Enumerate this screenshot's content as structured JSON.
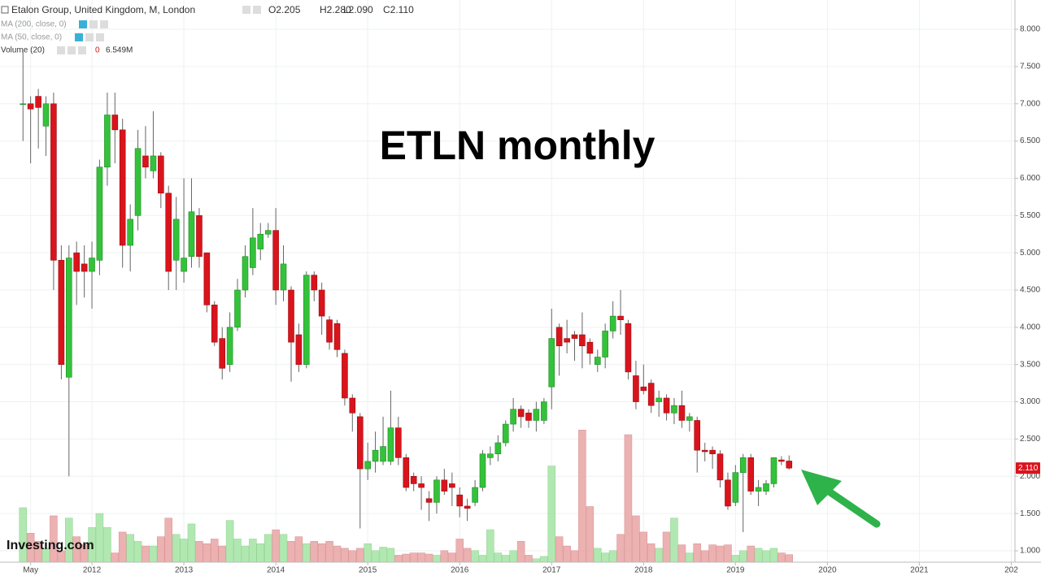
{
  "chart_data": {
    "type": "candlestick",
    "title": "ETLN monthly",
    "header": {
      "name": "Etalon Group, United Kingdom, M, London",
      "open": "O2.205",
      "high": "H2.280",
      "low": "L2.090",
      "close": "C2.110"
    },
    "indicators": [
      "MA (200, close, 0)",
      "MA (50, close, 0)"
    ],
    "volume_header": {
      "name": "Volume (20)",
      "zero": "0",
      "last": "6.549M"
    },
    "watermark": "Investing.com",
    "last_price_label": "2.110",
    "colors": {
      "up": "#34c23a",
      "down": "#d9141c",
      "up_volume": "#a9e6a9",
      "down_volume": "#eaa8a8"
    },
    "x": [
      2011.25,
      2011.333,
      2011.417,
      2011.5,
      2011.583,
      2011.667,
      2011.75,
      2011.833,
      2011.917,
      2012.0,
      2012.083,
      2012.167,
      2012.25,
      2012.333,
      2012.417,
      2012.5,
      2012.583,
      2012.667,
      2012.75,
      2012.833,
      2012.917,
      2013.0,
      2013.083,
      2013.167,
      2013.25,
      2013.333,
      2013.417,
      2013.5,
      2013.583,
      2013.667,
      2013.75,
      2013.833,
      2013.917,
      2014.0,
      2014.083,
      2014.167,
      2014.25,
      2014.333,
      2014.417,
      2014.5,
      2014.583,
      2014.667,
      2014.75,
      2014.833,
      2014.917,
      2015.0,
      2015.083,
      2015.167,
      2015.25,
      2015.333,
      2015.417,
      2015.5,
      2015.583,
      2015.667,
      2015.75,
      2015.833,
      2015.917,
      2016.0,
      2016.083,
      2016.167,
      2016.25,
      2016.333,
      2016.417,
      2016.5,
      2016.583,
      2016.667,
      2016.75,
      2016.833,
      2016.917,
      2017.0,
      2017.083,
      2017.167,
      2017.25,
      2017.333,
      2017.417,
      2017.5,
      2017.583,
      2017.667,
      2017.75,
      2017.833,
      2017.917,
      2018.0,
      2018.083,
      2018.167,
      2018.25,
      2018.333,
      2018.417,
      2018.5,
      2018.583,
      2018.667,
      2018.75,
      2018.833,
      2018.917,
      2019.0,
      2019.083,
      2019.167,
      2019.25,
      2019.333,
      2019.417,
      2019.5,
      2019.583
    ],
    "open": [
      7.0,
      7.0,
      7.1,
      6.7,
      7.0,
      4.9,
      3.33,
      5.0,
      4.85,
      4.75,
      4.9,
      6.15,
      6.85,
      6.65,
      5.1,
      5.5,
      6.3,
      6.1,
      6.3,
      5.8,
      4.9,
      4.75,
      4.95,
      5.5,
      5.0,
      4.3,
      3.85,
      3.5,
      4.0,
      4.5,
      4.8,
      5.05,
      5.25,
      5.3,
      4.5,
      4.5,
      3.9,
      3.5,
      4.7,
      4.5,
      4.1,
      4.05,
      3.65,
      3.05,
      2.8,
      2.1,
      2.2,
      2.2,
      2.2,
      2.65,
      2.25,
      2.0,
      1.9,
      1.7,
      1.65,
      1.95,
      1.9,
      1.75,
      1.6,
      1.65,
      1.85,
      2.25,
      2.3,
      2.45,
      2.7,
      2.9,
      2.85,
      2.75,
      2.75,
      3.2,
      4.0,
      3.85,
      3.9,
      3.9,
      3.8,
      3.5,
      3.6,
      3.95,
      4.15,
      4.05,
      3.35,
      3.2,
      3.25,
      3.0,
      3.05,
      2.85,
      2.95,
      2.75,
      2.75,
      2.35,
      2.35,
      2.3,
      1.95,
      1.65,
      2.05,
      2.25,
      1.8,
      1.8,
      1.9,
      2.22,
      2.205
    ],
    "high": [
      7.7,
      7.1,
      7.2,
      7.1,
      7.15,
      5.1,
      5.1,
      5.15,
      5.1,
      5.15,
      6.25,
      7.15,
      7.15,
      6.8,
      5.65,
      6.65,
      6.7,
      6.9,
      6.35,
      5.9,
      5.75,
      6.0,
      6.0,
      5.6,
      5.0,
      4.35,
      4.0,
      4.2,
      4.65,
      5.1,
      5.6,
      5.4,
      5.4,
      5.6,
      5.1,
      4.55,
      4.05,
      4.75,
      4.75,
      4.6,
      4.15,
      4.1,
      3.7,
      3.1,
      2.85,
      2.45,
      2.6,
      2.8,
      3.15,
      2.8,
      2.3,
      2.05,
      2.0,
      1.8,
      2.0,
      2.1,
      2.05,
      1.85,
      1.7,
      1.95,
      2.35,
      2.4,
      2.55,
      2.75,
      3.05,
      2.95,
      2.9,
      3.0,
      3.05,
      4.25,
      4.05,
      4.1,
      3.95,
      4.2,
      3.85,
      3.7,
      4.05,
      4.35,
      4.5,
      4.1,
      3.55,
      3.5,
      3.3,
      3.15,
      3.1,
      3.05,
      3.15,
      2.85,
      2.8,
      2.45,
      2.4,
      2.35,
      2.05,
      2.15,
      2.3,
      2.3,
      1.95,
      1.95,
      2.25,
      2.27,
      2.28
    ],
    "low": [
      6.5,
      6.2,
      6.4,
      6.3,
      4.5,
      3.3,
      2.0,
      4.3,
      4.4,
      4.25,
      4.7,
      5.9,
      6.2,
      4.8,
      4.75,
      5.3,
      6.0,
      6.0,
      5.6,
      4.5,
      4.5,
      4.6,
      4.8,
      4.8,
      4.2,
      3.75,
      3.3,
      3.4,
      3.95,
      4.4,
      4.7,
      4.9,
      5.2,
      4.3,
      4.35,
      3.27,
      3.4,
      3.45,
      4.35,
      3.9,
      3.7,
      3.6,
      2.95,
      2.6,
      1.3,
      1.95,
      2.05,
      2.15,
      2.15,
      2.15,
      1.8,
      1.8,
      1.55,
      1.4,
      1.5,
      1.75,
      1.6,
      1.45,
      1.4,
      1.6,
      1.8,
      2.15,
      2.2,
      2.4,
      2.6,
      2.65,
      2.65,
      2.6,
      2.7,
      2.9,
      3.35,
      3.65,
      3.55,
      3.45,
      3.5,
      3.4,
      3.45,
      3.85,
      3.9,
      3.3,
      2.9,
      3.1,
      2.85,
      2.8,
      2.75,
      2.7,
      2.65,
      2.6,
      2.05,
      2.2,
      2.1,
      1.85,
      1.55,
      1.6,
      1.25,
      1.75,
      1.6,
      1.75,
      1.85,
      2.15,
      2.09
    ],
    "close": [
      7.0,
      6.93,
      6.95,
      7.0,
      4.9,
      3.5,
      4.93,
      4.75,
      4.75,
      4.93,
      6.15,
      6.85,
      6.65,
      5.1,
      5.45,
      6.4,
      6.15,
      6.3,
      5.8,
      4.75,
      5.45,
      4.93,
      5.55,
      4.95,
      4.3,
      3.8,
      3.45,
      4.0,
      4.5,
      4.95,
      5.2,
      5.25,
      5.3,
      4.5,
      4.85,
      3.8,
      3.5,
      4.7,
      4.5,
      4.15,
      3.8,
      3.7,
      3.05,
      2.85,
      2.1,
      2.2,
      2.35,
      2.4,
      2.65,
      2.25,
      1.85,
      1.9,
      1.85,
      1.65,
      1.95,
      1.8,
      1.85,
      1.6,
      1.57,
      1.85,
      2.3,
      2.3,
      2.45,
      2.7,
      2.9,
      2.8,
      2.75,
      2.9,
      3.0,
      3.85,
      3.75,
      3.8,
      3.85,
      3.75,
      3.65,
      3.6,
      3.95,
      4.15,
      4.1,
      3.4,
      3.0,
      3.15,
      2.95,
      3.05,
      2.85,
      2.95,
      2.75,
      2.8,
      2.35,
      2.33,
      2.3,
      1.95,
      1.6,
      2.05,
      2.25,
      1.8,
      1.85,
      1.9,
      2.25,
      2.2,
      2.11
    ],
    "volume": [
      47,
      25,
      18,
      12,
      40,
      10,
      38,
      22,
      15,
      30,
      42,
      30,
      8,
      26,
      24,
      18,
      14,
      14,
      22,
      38,
      24,
      20,
      33,
      18,
      16,
      20,
      14,
      36,
      20,
      14,
      20,
      16,
      24,
      28,
      24,
      18,
      22,
      16,
      18,
      16,
      18,
      14,
      12,
      10,
      12,
      16,
      10,
      13,
      12,
      6,
      7,
      8,
      8,
      7,
      6,
      10,
      8,
      20,
      12,
      10,
      6,
      28,
      8,
      6,
      10,
      18,
      6,
      3,
      5,
      83,
      22,
      14,
      10,
      114,
      48,
      12,
      8,
      10,
      24,
      110,
      40,
      26,
      16,
      12,
      26,
      38,
      15,
      8,
      16,
      10,
      15,
      14,
      15,
      6,
      10,
      14,
      12,
      10,
      12,
      8,
      6.549
    ],
    "volume_ylim": [
      0,
      485
    ],
    "xlim": [
      2011.0,
      2022.04
    ],
    "xticks": [
      {
        "value": 2011.333,
        "label": "May"
      },
      2012,
      2013,
      2014,
      2015,
      2016,
      2017,
      2018,
      2019,
      2020,
      2021,
      {
        "value": 2022,
        "label": "202"
      }
    ],
    "ylim": [
      0.847,
      8.393
    ],
    "yticks": [
      {
        "value": 1,
        "label": "1.000"
      },
      {
        "value": 1.5,
        "label": "1.500"
      },
      {
        "value": 2,
        "label": "2.000"
      },
      {
        "value": 2.5,
        "label": "2.500"
      },
      {
        "value": 3,
        "label": "3.000"
      },
      {
        "value": 3.5,
        "label": "3.500"
      },
      {
        "value": 4,
        "label": "4.000"
      },
      {
        "value": 4.5,
        "label": "4.500"
      },
      {
        "value": 5,
        "label": "5.000"
      },
      {
        "value": 5.5,
        "label": "5.500"
      },
      {
        "value": 6,
        "label": "6.000"
      },
      {
        "value": 6.5,
        "label": "6.500"
      },
      {
        "value": 7,
        "label": "7.000"
      },
      {
        "value": 7.5,
        "label": "7.500"
      },
      {
        "value": 8,
        "label": "8.000"
      }
    ],
    "grid": true
  }
}
